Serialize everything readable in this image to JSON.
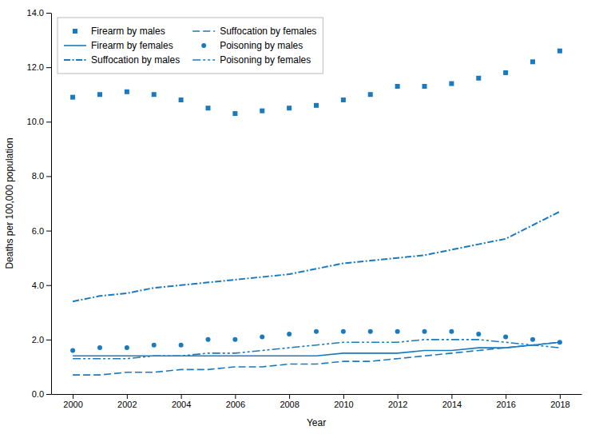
{
  "chart_data": {
    "type": "line",
    "xlabel": "Year",
    "ylabel": "Deaths per 100,000 population",
    "x": [
      2000,
      2001,
      2002,
      2003,
      2004,
      2005,
      2006,
      2007,
      2008,
      2009,
      2010,
      2011,
      2012,
      2013,
      2014,
      2015,
      2016,
      2017,
      2018
    ],
    "series": [
      {
        "name": "Firearm by males",
        "color": "#1a7abf",
        "marker": "square",
        "line_style": "none",
        "values": [
          10.9,
          11.0,
          11.1,
          11.0,
          10.8,
          10.5,
          10.3,
          10.4,
          10.5,
          10.6,
          10.8,
          11.0,
          11.3,
          11.3,
          11.4,
          11.6,
          11.8,
          12.2,
          12.6
        ]
      },
      {
        "name": "Firearm by females",
        "color": "#1a7abf",
        "line_style": "solid",
        "values": [
          1.4,
          1.4,
          1.4,
          1.4,
          1.4,
          1.4,
          1.4,
          1.4,
          1.4,
          1.4,
          1.5,
          1.5,
          1.5,
          1.6,
          1.6,
          1.7,
          1.7,
          1.8,
          1.9
        ]
      },
      {
        "name": "Suffocation by males",
        "color": "#1a7abf",
        "line_style": "dashdot",
        "values": [
          3.4,
          3.6,
          3.7,
          3.9,
          4.0,
          4.1,
          4.2,
          4.3,
          4.4,
          4.6,
          4.8,
          4.9,
          5.0,
          5.1,
          5.3,
          5.5,
          5.7,
          6.2,
          6.7
        ]
      },
      {
        "name": "Suffocation by females",
        "color": "#1a7abf",
        "line_style": "dashed",
        "values": [
          0.7,
          0.7,
          0.8,
          0.8,
          0.9,
          0.9,
          1.0,
          1.0,
          1.1,
          1.1,
          1.2,
          1.2,
          1.3,
          1.4,
          1.5,
          1.6,
          1.7,
          1.8,
          1.9
        ]
      },
      {
        "name": "Poisoning by males",
        "color": "#1a7abf",
        "marker": "circle",
        "line_style": "none",
        "values": [
          1.6,
          1.7,
          1.7,
          1.8,
          1.8,
          2.0,
          2.0,
          2.1,
          2.2,
          2.3,
          2.3,
          2.3,
          2.3,
          2.3,
          2.3,
          2.2,
          2.1,
          2.0,
          1.9
        ]
      },
      {
        "name": "Poisoning by females",
        "color": "#1a7abf",
        "line_style": "dashdotdot",
        "values": [
          1.3,
          1.3,
          1.3,
          1.4,
          1.4,
          1.5,
          1.5,
          1.6,
          1.7,
          1.8,
          1.9,
          1.9,
          1.9,
          2.0,
          2.0,
          2.0,
          1.9,
          1.8,
          1.7
        ]
      }
    ],
    "xlim": [
      1999.2,
      2018.8
    ],
    "xticks": [
      2000,
      2002,
      2004,
      2006,
      2008,
      2010,
      2012,
      2014,
      2016,
      2018
    ],
    "ylim": [
      0.0,
      14.0
    ],
    "yticks": [
      {
        "value": 0,
        "label": "0.0"
      },
      {
        "value": 2,
        "label": "2.0"
      },
      {
        "value": 4,
        "label": "4.0"
      },
      {
        "value": 6,
        "label": "6.0"
      },
      {
        "value": 8,
        "label": "8.0"
      },
      {
        "value": 10,
        "label": "10.0"
      },
      {
        "value": 12,
        "label": "12.0"
      },
      {
        "value": 14,
        "label": "14.0"
      }
    ],
    "grid": false,
    "legend": "upper left"
  }
}
